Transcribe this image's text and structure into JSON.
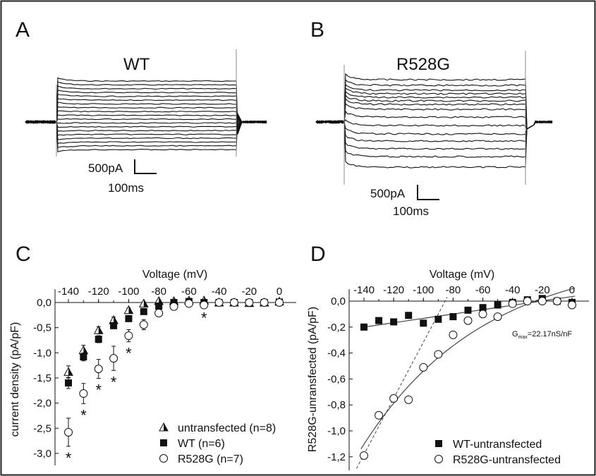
{
  "panels": {
    "A": {
      "letter": "A",
      "title": "WT",
      "scale_current": "500pA",
      "scale_time": "100ms"
    },
    "B": {
      "letter": "B",
      "title": "R528G",
      "scale_current": "500pA",
      "scale_time": "100ms"
    },
    "C": {
      "letter": "C"
    },
    "D": {
      "letter": "D",
      "annotation_main": "G",
      "annotation_sub": "max",
      "annotation_rest": "=22.17nS/nF"
    }
  },
  "chart_data": [
    {
      "panel": "C",
      "type": "scatter",
      "xlabel": "Voltage (mV)",
      "ylabel": "current density (pA/pF)",
      "xlim": [
        -150,
        10
      ],
      "ylim": [
        -3.2,
        0.15
      ],
      "x_ticks": [
        "-140",
        "-120",
        "-100",
        "-80",
        "-60",
        "-40",
        "-20",
        "0"
      ],
      "y_ticks": [
        "0,0",
        "-0,5",
        "-1,0",
        "-1,5",
        "-2,0",
        "-2,5",
        "-3,0"
      ],
      "x": [
        -140,
        -130,
        -120,
        -110,
        -100,
        -90,
        -80,
        -70,
        -60,
        -50,
        -40,
        -30,
        -20,
        -10,
        0
      ],
      "series": [
        {
          "name": "untransfected (n=8)",
          "marker": "half-filled-triangle",
          "values": [
            -1.38,
            -0.95,
            -0.55,
            -0.35,
            -0.15,
            -0.02,
            0.03,
            0.03,
            0.04,
            0.04,
            0.0,
            0.0,
            -0.01,
            0.0,
            0.02
          ],
          "errors": [
            0.12,
            0.1,
            0.07,
            0.06,
            0.04,
            0.03,
            0.02,
            0.02,
            0.02,
            0.02,
            0.02,
            0.02,
            0.02,
            0.02,
            0.02
          ]
        },
        {
          "name": "WT (n=6)",
          "marker": "filled-square",
          "values": [
            -1.6,
            -1.08,
            -0.73,
            -0.46,
            -0.32,
            -0.18,
            -0.07,
            0.0,
            0.02,
            0.0,
            0.0,
            0.0,
            0.0,
            0.0,
            0.01
          ],
          "errors": [
            0.11,
            0.08,
            0.07,
            0.06,
            0.05,
            0.04,
            0.03,
            0.03,
            0.02,
            0.02,
            0.02,
            0.02,
            0.02,
            0.02,
            0.02
          ]
        },
        {
          "name": "R528G (n=7)",
          "marker": "open-circle",
          "values": [
            -2.58,
            -1.81,
            -1.32,
            -1.11,
            -0.66,
            -0.44,
            -0.21,
            -0.08,
            -0.02,
            -0.05,
            0.0,
            0.0,
            0.0,
            0.0,
            0.0
          ],
          "errors": [
            0.28,
            0.2,
            0.19,
            0.24,
            0.12,
            0.1,
            0.05,
            0.04,
            0.03,
            0.03,
            0.02,
            0.02,
            0.02,
            0.02,
            0.02
          ]
        }
      ],
      "significance_marker": "*",
      "significant_x": [
        -140,
        -130,
        -120,
        -110,
        -100,
        -50
      ],
      "legend_position": "bottom-right",
      "grid": false
    },
    {
      "panel": "D",
      "type": "scatter",
      "xlabel": "Voltage (mV)",
      "ylabel": "R528G-unransfected (pA/pF)",
      "xlim": [
        -150,
        10
      ],
      "ylim": [
        -1.28,
        0.03
      ],
      "x_ticks": [
        "-140",
        "-120",
        "-100",
        "-80",
        "-60",
        "-40",
        "-20",
        "0"
      ],
      "y_ticks": [
        "0,0",
        "-0,2",
        "-0,4",
        "-0,6",
        "-0,8",
        "-1,0",
        "-1,2"
      ],
      "x": [
        -140,
        -130,
        -120,
        -110,
        -100,
        -90,
        -80,
        -70,
        -60,
        -50,
        -40,
        -30,
        -20,
        -10,
        0
      ],
      "series": [
        {
          "name": "WT-untransfected",
          "marker": "filled-square",
          "fit": "linear",
          "values": [
            -0.2,
            -0.15,
            -0.16,
            -0.11,
            -0.17,
            -0.14,
            -0.12,
            -0.07,
            -0.05,
            -0.03,
            -0.01,
            0.01,
            0.02,
            0.0,
            -0.01
          ]
        },
        {
          "name": "R528G-untransfected",
          "marker": "open-circle",
          "fit": "curve",
          "values": [
            -1.19,
            -0.88,
            -0.75,
            -0.76,
            -0.51,
            -0.41,
            -0.26,
            -0.15,
            -0.1,
            -0.12,
            -0.02,
            0.0,
            0.0,
            0.0,
            -0.03
          ]
        }
      ],
      "legend_position": "bottom-right",
      "grid": false
    }
  ],
  "colors": {
    "ink": "#111111",
    "fit": "#555555",
    "frame": "#222222"
  }
}
